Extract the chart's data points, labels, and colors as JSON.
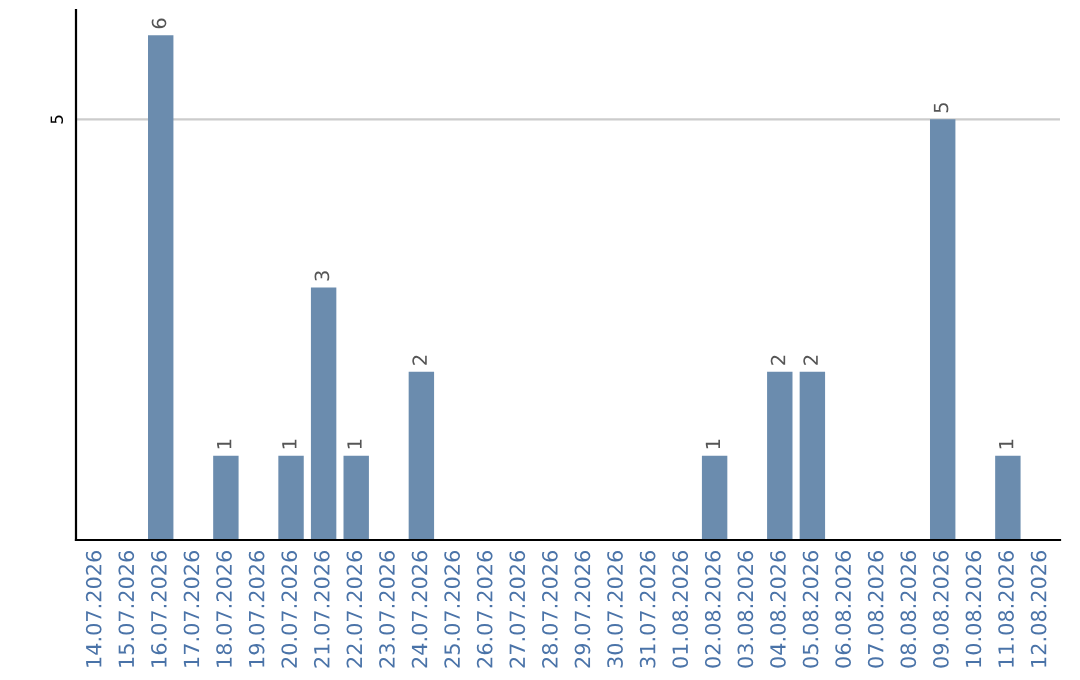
{
  "chart_data": {
    "type": "bar",
    "categories": [
      "14.07.2026",
      "15.07.2026",
      "16.07.2026",
      "17.07.2026",
      "18.07.2026",
      "19.07.2026",
      "20.07.2026",
      "21.07.2026",
      "22.07.2026",
      "23.07.2026",
      "24.07.2026",
      "25.07.2026",
      "26.07.2026",
      "27.07.2026",
      "28.07.2026",
      "29.07.2026",
      "30.07.2026",
      "31.07.2026",
      "01.08.2026",
      "02.08.2026",
      "03.08.2026",
      "04.08.2026",
      "05.08.2026",
      "06.08.2026",
      "07.08.2026",
      "08.08.2026",
      "09.08.2026",
      "10.08.2026",
      "11.08.2026",
      "12.08.2026"
    ],
    "values": [
      0,
      0,
      6,
      0,
      1,
      0,
      1,
      3,
      1,
      0,
      2,
      0,
      0,
      0,
      0,
      0,
      0,
      0,
      0,
      1,
      0,
      2,
      2,
      0,
      0,
      0,
      5,
      0,
      1,
      0
    ],
    "value_labels": [
      null,
      null,
      "6",
      null,
      "1",
      null,
      "1",
      "3",
      "1",
      null,
      "2",
      null,
      null,
      null,
      null,
      null,
      null,
      null,
      null,
      "1",
      null,
      "2",
      "2",
      null,
      null,
      null,
      "5",
      null,
      "1",
      null
    ],
    "color": "#6b8cae",
    "ylim": [
      0,
      6.3
    ],
    "yticks": [
      5
    ],
    "grid": "y"
  }
}
